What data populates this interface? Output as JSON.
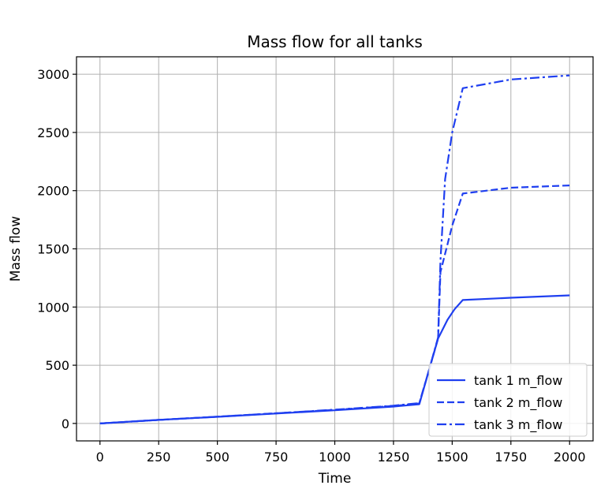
{
  "chart_data": {
    "type": "line",
    "title": "Mass flow for all tanks",
    "xlabel": "Time",
    "ylabel": "Mass flow",
    "xlim": [
      -100,
      2100
    ],
    "ylim": [
      -150,
      3150
    ],
    "xticks": [
      0,
      250,
      500,
      750,
      1000,
      1250,
      1500,
      1750,
      2000
    ],
    "yticks": [
      0,
      500,
      1000,
      1500,
      2000,
      2500,
      3000
    ],
    "grid": true,
    "legend_position": "lower-right",
    "line_color": "#1f3ff0",
    "series": [
      {
        "name": "tank 1  m_flow",
        "style": "solid",
        "x": [
          0,
          250,
          500,
          750,
          1000,
          1250,
          1360,
          1400,
          1440,
          1480,
          1510,
          1545,
          1750,
          2000
        ],
        "y": [
          0,
          30,
          57,
          85,
          113,
          145,
          165,
          450,
          730,
          890,
          980,
          1060,
          1080,
          1100
        ]
      },
      {
        "name": "tank 2 m_flow",
        "style": "dashed",
        "x": [
          0,
          250,
          500,
          750,
          1000,
          1250,
          1360,
          1400,
          1440,
          1450,
          1500,
          1545,
          1750,
          2000
        ],
        "y": [
          0,
          30,
          58,
          87,
          117,
          150,
          172,
          450,
          730,
          1300,
          1700,
          1975,
          2025,
          2045
        ]
      },
      {
        "name": "tank 3 m_flow",
        "style": "dashdot",
        "x": [
          0,
          250,
          500,
          750,
          1000,
          1250,
          1360,
          1400,
          1440,
          1450,
          1470,
          1500,
          1545,
          1750,
          2000
        ],
        "y": [
          0,
          30,
          58,
          87,
          118,
          152,
          175,
          450,
          740,
          1400,
          2100,
          2500,
          2880,
          2955,
          2990
        ]
      }
    ]
  }
}
